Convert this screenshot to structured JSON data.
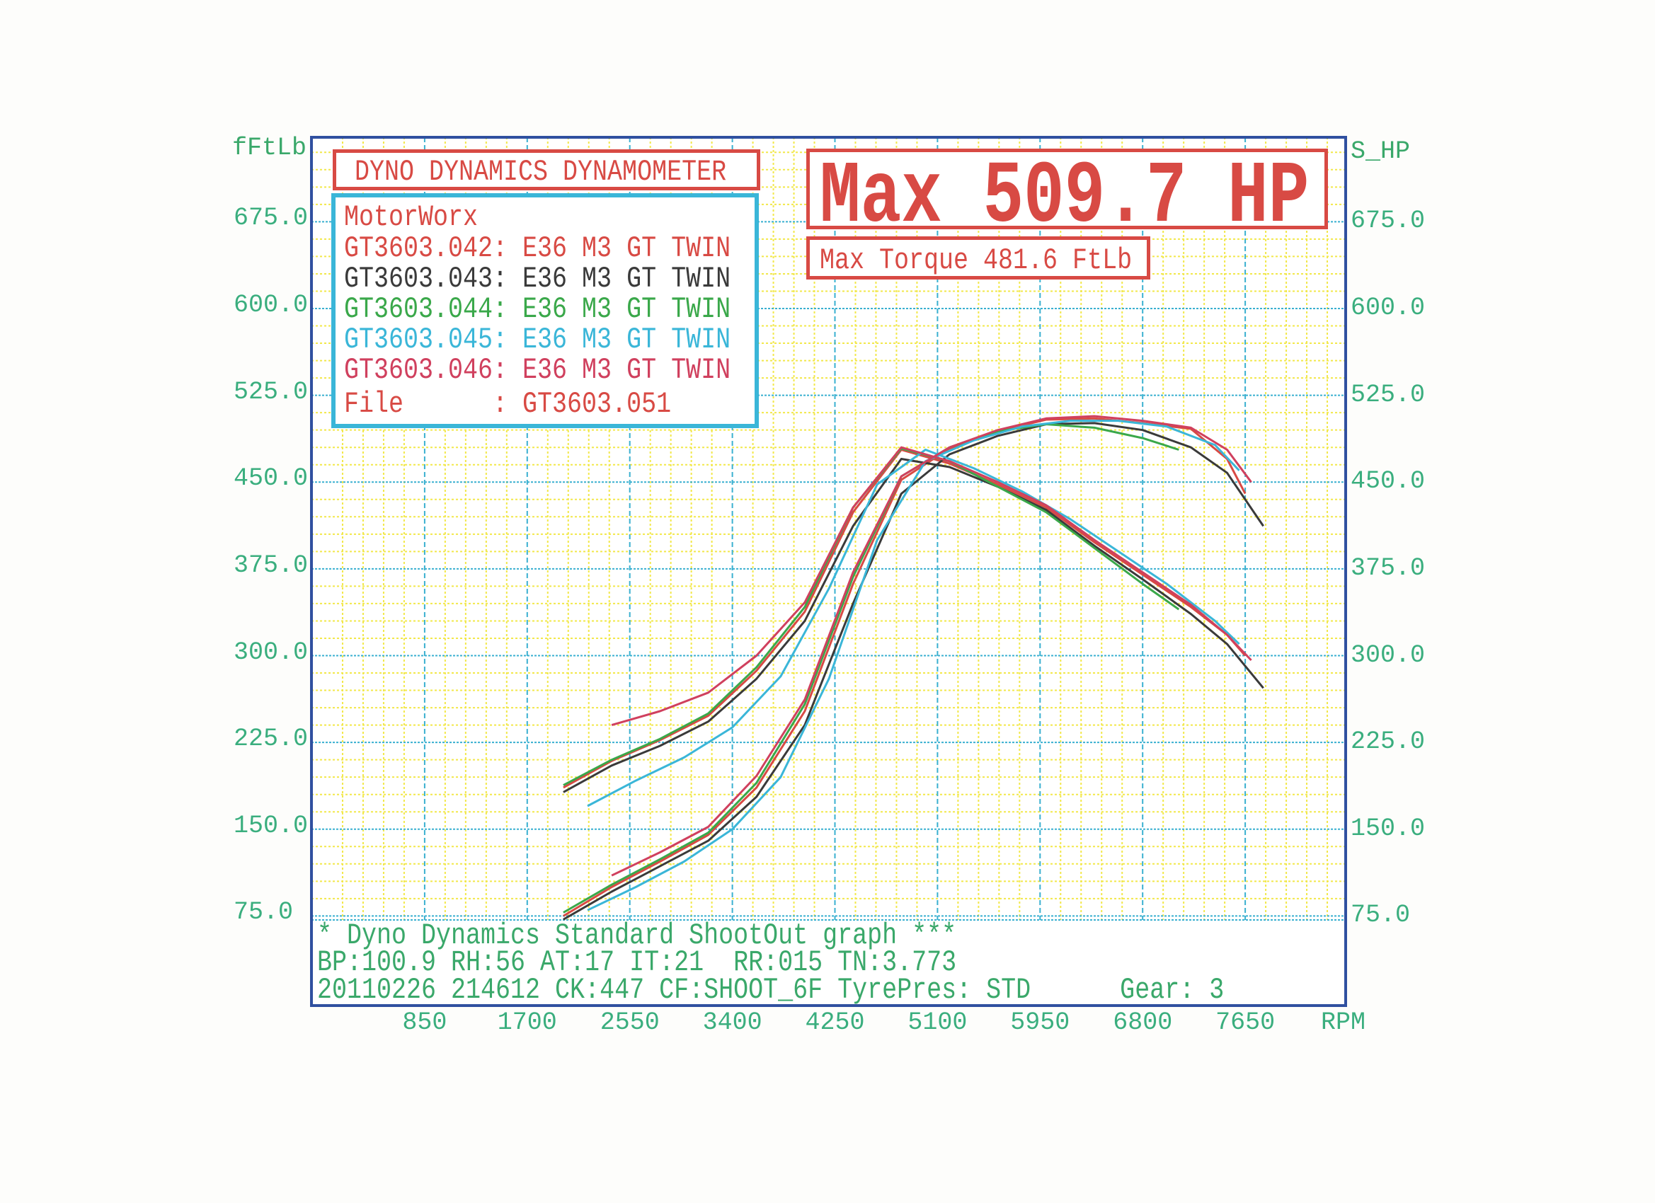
{
  "chart_data": {
    "type": "line",
    "title": "DYNO DYNAMICS DYNAMOMETER",
    "xlabel": "RPM",
    "ylabel_left": "fFtLb",
    "ylabel_right": "S_HP",
    "x_ticks": [
      "850",
      "1700",
      "2550",
      "3400",
      "4250",
      "5100",
      "5950",
      "6800",
      "7650"
    ],
    "y_ticks_left": [
      "675.0",
      "600.0",
      "525.0",
      "450.0",
      "375.0",
      "300.0",
      "225.0",
      "150.0",
      "75.0"
    ],
    "y_ticks_right": [
      "675.0",
      "600.0",
      "525.0",
      "450.0",
      "375.0",
      "300.0",
      "225.0",
      "150.0",
      "75.0"
    ],
    "xlim": [
      0,
      8480
    ],
    "ylim": [
      0,
      748
    ],
    "grid": true,
    "legend_placement": "top-left",
    "colors": {
      "major_grid": "#3ab0d0",
      "minor_grid": "#f2e84a",
      "frame": "#3050a0",
      "text": "#3aa86a",
      "highlight": "#d84a44"
    },
    "series": [
      {
        "name": "GT3603.042: E36 M3 GT TWIN",
        "color": "#d84a44",
        "rpm": [
          2000,
          2400,
          2800,
          3200,
          3600,
          4000,
          4400,
          4800,
          5200,
          5600,
          6000,
          6400,
          6800,
          7200,
          7500,
          7650
        ],
        "power_hp": [
          75,
          100,
          122,
          145,
          186,
          252,
          362,
          452,
          479,
          494,
          504,
          505,
          501,
          496,
          470,
          440
        ],
        "torque_ftlb": [
          186,
          209,
          227,
          248,
          287,
          338,
          424,
          478,
          466,
          448,
          428,
          398,
          370,
          342,
          318,
          300
        ]
      },
      {
        "name": "GT3603.043: E36 M3 GT TWIN",
        "color": "#3a3a3a",
        "rpm": [
          2000,
          2400,
          2800,
          3200,
          3600,
          4000,
          4400,
          4800,
          5200,
          5600,
          6000,
          6400,
          6800,
          7200,
          7500,
          7800
        ],
        "power_hp": [
          72,
          96,
          118,
          140,
          178,
          240,
          345,
          440,
          474,
          490,
          500,
          501,
          495,
          480,
          458,
          412
        ],
        "torque_ftlb": [
          182,
          205,
          222,
          243,
          280,
          330,
          412,
          470,
          463,
          446,
          426,
          395,
          366,
          336,
          310,
          272
        ]
      },
      {
        "name": "GT3603.044: E36 M3 GT TWIN",
        "color": "#3aa84a",
        "rpm": [
          2000,
          2400,
          2800,
          3200,
          3600,
          4000,
          4400,
          4800,
          5200,
          5600,
          6000,
          6400,
          6800,
          7100
        ],
        "power_hp": [
          78,
          102,
          124,
          147,
          190,
          258,
          368,
          455,
          480,
          494,
          500,
          497,
          488,
          478
        ],
        "torque_ftlb": [
          188,
          210,
          228,
          250,
          290,
          342,
          428,
          479,
          468,
          446,
          424,
          393,
          362,
          340
        ]
      },
      {
        "name": "GT3603.045: E36 M3 GT TWIN",
        "color": "#3ab6d8",
        "rpm": [
          2200,
          2600,
          3000,
          3400,
          3800,
          4200,
          4600,
          5000,
          5400,
          5800,
          6200,
          6600,
          7000,
          7400,
          7600
        ],
        "power_hp": [
          80,
          100,
          122,
          150,
          195,
          280,
          400,
          468,
          486,
          498,
          503,
          503,
          498,
          482,
          460
        ],
        "torque_ftlb": [
          170,
          192,
          212,
          238,
          282,
          358,
          448,
          478,
          462,
          442,
          418,
          390,
          362,
          330,
          310
        ]
      },
      {
        "name": "GT3603.046: E36 M3 GT TWIN",
        "color": "#d0405e",
        "rpm": [
          2400,
          2800,
          3200,
          3600,
          4000,
          4400,
          4800,
          5200,
          5600,
          6000,
          6400,
          6800,
          7200,
          7500,
          7700
        ],
        "power_hp": [
          110,
          130,
          152,
          196,
          262,
          372,
          455,
          480,
          495,
          505,
          507,
          503,
          497,
          478,
          450
        ],
        "torque_ftlb": [
          240,
          252,
          268,
          300,
          346,
          428,
          480,
          468,
          450,
          430,
          400,
          372,
          344,
          318,
          296
        ]
      }
    ]
  },
  "header": {
    "company": "MotorWorx",
    "file_line": "File      : GT3603.051",
    "max_hp": "Max 509.7 HP",
    "max_torque": "Max Torque 481.6 FtLb"
  },
  "footer": {
    "line1": "* Dyno Dynamics Standard ShootOut graph ***",
    "line2": "BP:100.9 RH:56 AT:17 IT:21  RR:015 TN:3.773",
    "line3": "20110226 214612 CK:447 CF:SHOOT_6F TyrePres: STD      Gear: 3"
  }
}
